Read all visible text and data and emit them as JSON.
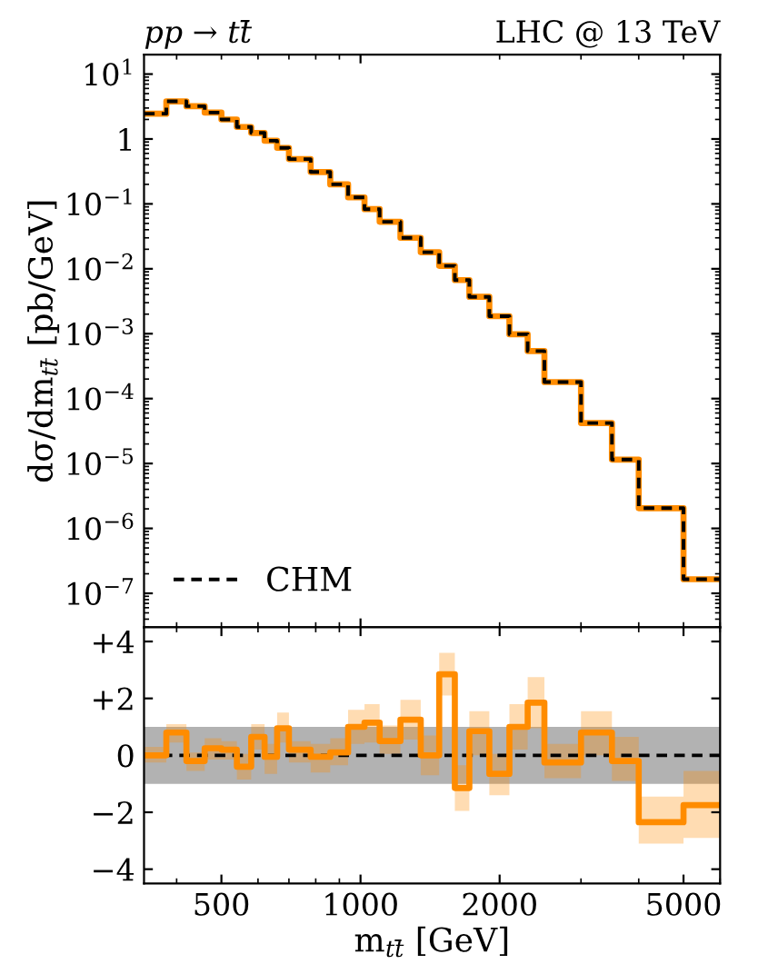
{
  "chart_data": [
    {
      "type": "step",
      "annotations": [
        "pp → tt̄",
        "LHC @ 13 TeV"
      ],
      "ylabel": "dσ/dm$_{tt̄}$ [pb/GeV]",
      "x": [
        340,
        380,
        420,
        460,
        500,
        540,
        580,
        620,
        660,
        700,
        780,
        860,
        940,
        1020,
        1100,
        1220,
        1350,
        1480,
        1600,
        1720,
        1900,
        2100,
        2300,
        2500,
        3000,
        3500,
        4000,
        5000,
        6000
      ],
      "series": [
        {
          "color": "#ff8c00",
          "line_style": "solid",
          "values": [
            2.45,
            3.8,
            3.2,
            2.55,
            2.0,
            1.53,
            1.24,
            0.94,
            0.73,
            0.49,
            0.31,
            0.2,
            0.126,
            0.083,
            0.053,
            0.03,
            0.018,
            0.0111,
            0.0067,
            0.0037,
            0.00186,
            0.00098,
            0.00054,
            0.00018,
            4.2e-05,
            1.15e-05,
            2.05e-06,
            1.65e-07,
            1.65e-07
          ]
        },
        {
          "name": "CHM",
          "color": "#000000",
          "line_style": "dashed",
          "values": [
            2.45,
            3.8,
            3.2,
            2.55,
            2.0,
            1.53,
            1.24,
            0.94,
            0.73,
            0.49,
            0.31,
            0.2,
            0.126,
            0.083,
            0.053,
            0.03,
            0.018,
            0.0111,
            0.0067,
            0.0037,
            0.00186,
            0.00098,
            0.00054,
            0.00018,
            4.2e-05,
            1.15e-05,
            2.05e-06,
            1.65e-07,
            1.65e-07
          ]
        }
      ],
      "log": "xy",
      "xlim": [
        340,
        6000
      ],
      "ylim": [
        3e-08,
        20
      ],
      "yticks": [
        {
          "value": 10,
          "label": "10$^{1}$"
        },
        1,
        {
          "value": 0.1,
          "label": "10$^{−1}$"
        },
        {
          "value": 0.01,
          "label": "10$^{−2}$"
        },
        {
          "value": 0.001,
          "label": "10$^{−3}$"
        },
        {
          "value": 0.0001,
          "label": "10$^{−4}$"
        },
        {
          "value": 1e-05,
          "label": "10$^{−5}$"
        },
        {
          "value": 1e-06,
          "label": "10$^{−6}$"
        },
        {
          "value": 1e-07,
          "label": "10$^{−7}$"
        }
      ],
      "tick_labels": "y",
      "legend": "bottom left",
      "grid": false
    },
    {
      "type": "step",
      "xlabel": "m$_{tt̄}$ [GeV]",
      "x": [
        340,
        380,
        420,
        460,
        500,
        540,
        580,
        620,
        660,
        700,
        780,
        860,
        940,
        1020,
        1100,
        1220,
        1350,
        1480,
        1600,
        1720,
        1900,
        2100,
        2300,
        2500,
        3000,
        3500,
        4000,
        5000,
        6000
      ],
      "series": [
        {
          "color": "#000000",
          "line_style": "dashed",
          "values": [
            0,
            0,
            0,
            0,
            0,
            0,
            0,
            0,
            0,
            0,
            0,
            0,
            0,
            0,
            0,
            0,
            0,
            0,
            0,
            0,
            0,
            0,
            0,
            0,
            0,
            0,
            0,
            0,
            0
          ],
          "lower": [
            -1,
            -1,
            -1,
            -1,
            -1,
            -1,
            -1,
            -1,
            -1,
            -1,
            -1,
            -1,
            -1,
            -1,
            -1,
            -1,
            -1,
            -1,
            -1,
            -1,
            -1,
            -1,
            -1,
            -1,
            -1,
            -1,
            -1,
            -1,
            -1
          ],
          "upper": [
            1,
            1,
            1,
            1,
            1,
            1,
            1,
            1,
            1,
            1,
            1,
            1,
            1,
            1,
            1,
            1,
            1,
            1,
            1,
            1,
            1,
            1,
            1,
            1,
            1,
            1,
            1,
            1,
            1
          ]
        },
        {
          "color": "#ff8c00",
          "line_style": "solid",
          "values": [
            0.0,
            0.8,
            -0.2,
            0.25,
            0.2,
            -0.4,
            0.65,
            -0.05,
            0.95,
            0.2,
            -0.05,
            0.1,
            1.0,
            1.15,
            0.5,
            1.25,
            0.0,
            2.85,
            -1.15,
            0.85,
            -0.65,
            1.0,
            1.85,
            -0.25,
            0.8,
            -0.2,
            -2.35,
            -1.75,
            -1.75
          ],
          "lower": [
            -0.25,
            0.45,
            -0.55,
            -0.15,
            -0.15,
            -0.85,
            0.2,
            -0.65,
            0.45,
            -0.25,
            -0.6,
            -0.35,
            0.4,
            0.45,
            0.05,
            0.55,
            -0.7,
            2.1,
            -1.95,
            0.0,
            -1.4,
            0.2,
            0.95,
            -0.8,
            0.0,
            -0.9,
            -3.1,
            -2.9,
            -2.9
          ],
          "upper": [
            0.3,
            1.1,
            0.1,
            0.6,
            0.5,
            0.05,
            1.1,
            0.4,
            1.5,
            0.5,
            0.4,
            0.6,
            1.6,
            1.8,
            1.05,
            1.95,
            0.7,
            3.6,
            -0.35,
            1.55,
            0.05,
            1.8,
            2.75,
            0.4,
            1.55,
            0.65,
            -1.45,
            -0.55,
            -0.55
          ]
        }
      ],
      "log": "x",
      "xlim": [
        340,
        6000
      ],
      "ylim": [
        -4.5,
        4.5
      ],
      "xticks": [
        500,
        1000,
        2000,
        5000
      ],
      "yticks": [
        {
          "value": 4,
          "label": "+4"
        },
        {
          "value": 2,
          "label": "+2"
        },
        0,
        {
          "value": -2,
          "label": "−2"
        },
        {
          "value": -4,
          "label": "−4"
        }
      ],
      "grid": false
    }
  ]
}
